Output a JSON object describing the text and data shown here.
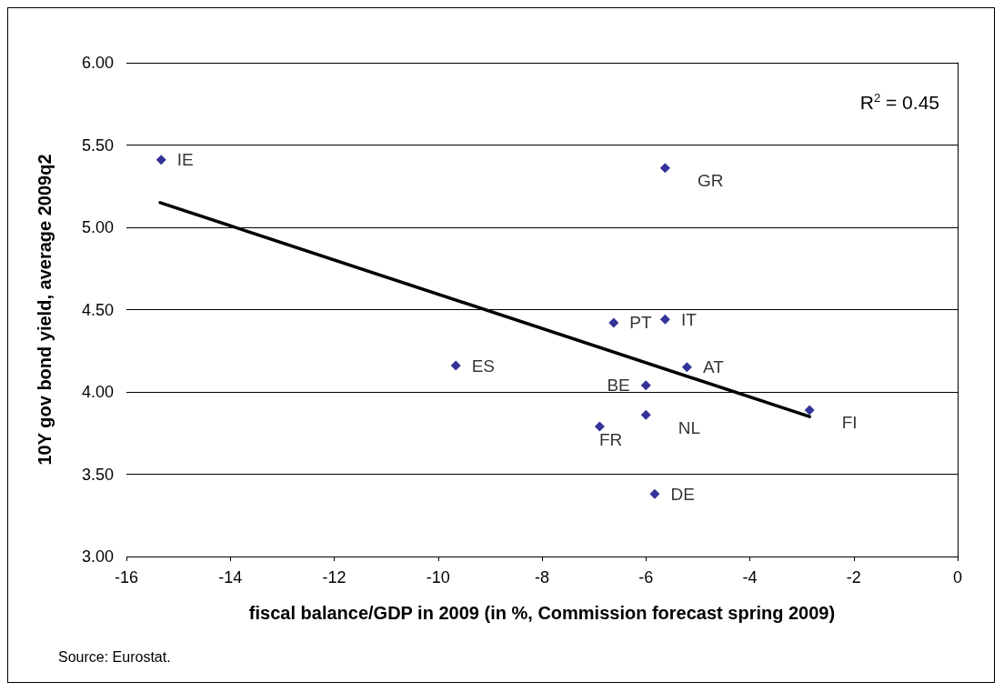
{
  "chart_data": {
    "type": "scatter",
    "xlabel": "fiscal balance/GDP in 2009 (in %, Commission forecast spring 2009)",
    "ylabel": "10Y gov bond yield, average 2009q2",
    "annotations": [
      "R$^{2}$ = 0.45",
      "Source: Eurostat."
    ],
    "xlim": [
      -16,
      0
    ],
    "xticks": [
      -16,
      -14,
      -12,
      -10,
      -8,
      -6,
      -4,
      -2,
      0
    ],
    "ylim": [
      3,
      6
    ],
    "yticks": [
      {
        "value": 3,
        "label": "3.00"
      },
      {
        "value": 3.5,
        "label": "3.50"
      },
      {
        "value": 4,
        "label": "4.00"
      },
      {
        "value": 4.5,
        "label": "4.50"
      },
      {
        "value": 5,
        "label": "5.00"
      },
      {
        "value": 5.5,
        "label": "5.50"
      },
      {
        "value": 6,
        "label": "6.00"
      }
    ],
    "grid": "y",
    "series": [
      {
        "color": "#000080",
        "marker": "diamond",
        "x": [
          -15.33,
          -5.63,
          -6.62,
          -5.63,
          -5.21,
          -6.0,
          -6.0,
          -6.89,
          -5.83,
          -2.85,
          -9.66
        ],
        "values": [
          5.41,
          5.36,
          4.42,
          4.44,
          4.15,
          4.04,
          3.86,
          3.79,
          3.38,
          3.89,
          4.16
        ],
        "value_labels": [
          "IE",
          "GR",
          "PT",
          "IT",
          "AT",
          "BE",
          "NL",
          "FR",
          "DE",
          "FI",
          "ES"
        ]
      },
      {
        "type": "line",
        "color": "#000000",
        "marker": "none",
        "line_style": "solid",
        "x": [
          -15.35,
          -2.85
        ],
        "values": [
          5.15,
          3.85
        ]
      }
    ]
  }
}
